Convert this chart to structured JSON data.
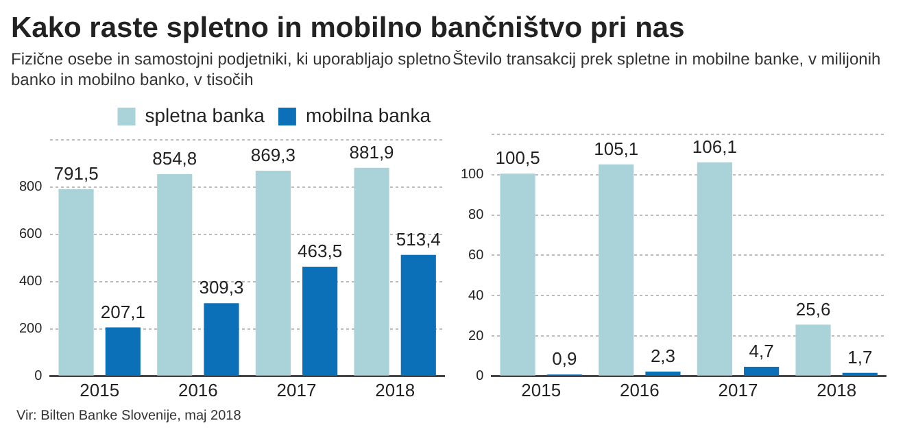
{
  "chart_data": [
    {
      "type": "bar",
      "title": "Kako raste spletno in mobilno bančništvo pri nas",
      "subtitle": "Fizične osebe in samostojni podjetniki, ki uporabljajo spletno banko in mobilno banko, v tisočih",
      "categories": [
        "2015",
        "2016",
        "2017",
        "2018"
      ],
      "series": [
        {
          "name": "spletna banka",
          "color": "#a9d3d9",
          "values": [
            791.5,
            854.8,
            869.3,
            881.9
          ],
          "value_labels": [
            "791,5",
            "854,8",
            "869,3",
            "881,9"
          ]
        },
        {
          "name": "mobilna banka",
          "color": "#0b70b8",
          "values": [
            207.1,
            309.3,
            463.5,
            513.4
          ],
          "value_labels": [
            "207,1",
            "309,3",
            "463,5",
            "513,4"
          ]
        }
      ],
      "ylim": [
        0,
        1000
      ],
      "yticks": [
        0,
        200,
        400,
        600,
        800,
        {
          "value": 1000,
          "label": null
        }
      ],
      "grid": "y",
      "legend": "top right",
      "annotations": [
        "Vir: Bilten Banke Slovenije, maj 2018"
      ]
    },
    {
      "type": "bar",
      "subtitle": "Število transakcij prek spletne in mobilne banke, v milijonih",
      "categories": [
        "2015",
        "2016",
        "2017",
        "2018"
      ],
      "series": [
        {
          "color": "#a9d3d9",
          "values": [
            100.5,
            105.1,
            106.1,
            25.6
          ],
          "value_labels": [
            "100,5",
            "105,1",
            "106,1",
            "25,6"
          ]
        },
        {
          "color": "#0b70b8",
          "values": [
            0.9,
            2.3,
            4.7,
            1.7
          ],
          "value_labels": [
            "0,9",
            "2,3",
            "4,7",
            "1,7"
          ]
        }
      ],
      "ylim": [
        0,
        120
      ],
      "yticks": [
        0,
        20,
        40,
        60,
        80,
        100,
        {
          "value": 120,
          "label": null
        }
      ],
      "grid": "y",
      "legend": false
    }
  ]
}
